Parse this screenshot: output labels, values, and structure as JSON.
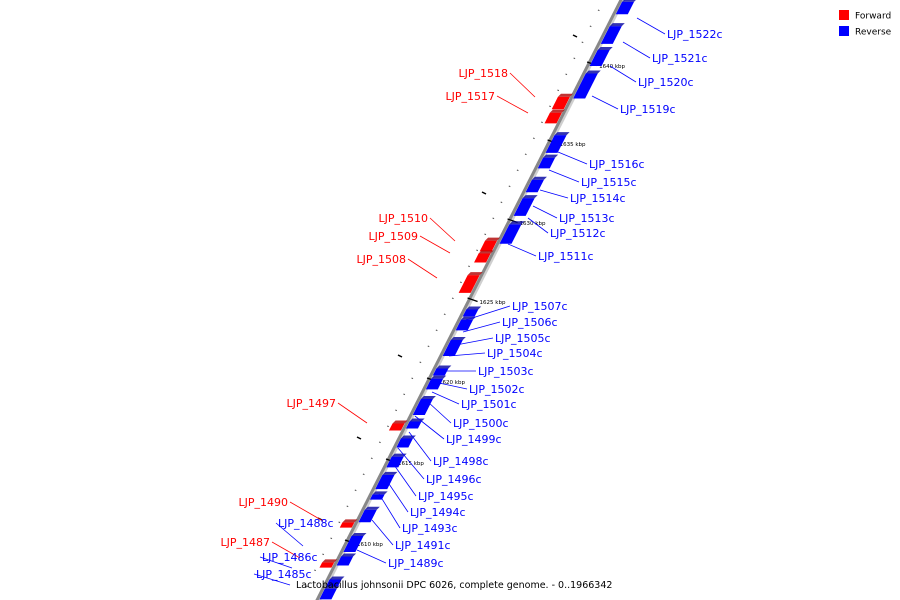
{
  "caption": "Lactobacillus johnsonii DPC 6026, complete genome. - 0..1966342",
  "legend": [
    {
      "label": "Forward",
      "color": "#ff0000"
    },
    {
      "label": "Reverse",
      "color": "#0000ff"
    }
  ],
  "colors": {
    "forward": "#ff0000",
    "reverse": "#0000ff",
    "axis": "#888888"
  },
  "ticks": [
    "1610 kbp",
    "1615 kbp",
    "1620 kbp",
    "1625 kbp",
    "1630 kbp",
    "1635 kbp",
    "1640 kbp"
  ],
  "genes": [
    {
      "name": "LJP_1522c",
      "strand": "reverse"
    },
    {
      "name": "LJP_1521c",
      "strand": "reverse"
    },
    {
      "name": "LJP_1520c",
      "strand": "reverse"
    },
    {
      "name": "LJP_1519c",
      "strand": "reverse"
    },
    {
      "name": "LJP_1518",
      "strand": "forward"
    },
    {
      "name": "LJP_1517",
      "strand": "forward"
    },
    {
      "name": "LJP_1516c",
      "strand": "reverse"
    },
    {
      "name": "LJP_1515c",
      "strand": "reverse"
    },
    {
      "name": "LJP_1514c",
      "strand": "reverse"
    },
    {
      "name": "LJP_1513c",
      "strand": "reverse"
    },
    {
      "name": "LJP_1512c",
      "strand": "reverse"
    },
    {
      "name": "LJP_1511c",
      "strand": "reverse"
    },
    {
      "name": "LJP_1510",
      "strand": "forward"
    },
    {
      "name": "LJP_1509",
      "strand": "forward"
    },
    {
      "name": "LJP_1508",
      "strand": "forward"
    },
    {
      "name": "LJP_1507c",
      "strand": "reverse"
    },
    {
      "name": "LJP_1506c",
      "strand": "reverse"
    },
    {
      "name": "LJP_1505c",
      "strand": "reverse"
    },
    {
      "name": "LJP_1504c",
      "strand": "reverse"
    },
    {
      "name": "LJP_1503c",
      "strand": "reverse"
    },
    {
      "name": "LJP_1502c",
      "strand": "reverse"
    },
    {
      "name": "LJP_1501c",
      "strand": "reverse"
    },
    {
      "name": "LJP_1500c",
      "strand": "reverse"
    },
    {
      "name": "LJP_1499c",
      "strand": "reverse"
    },
    {
      "name": "LJP_1498c",
      "strand": "reverse"
    },
    {
      "name": "LJP_1497",
      "strand": "forward"
    },
    {
      "name": "LJP_1496c",
      "strand": "reverse"
    },
    {
      "name": "LJP_1495c",
      "strand": "reverse"
    },
    {
      "name": "LJP_1494c",
      "strand": "reverse"
    },
    {
      "name": "LJP_1493c",
      "strand": "reverse"
    },
    {
      "name": "LJP_1491c",
      "strand": "reverse"
    },
    {
      "name": "LJP_1490",
      "strand": "forward"
    },
    {
      "name": "LJP_1489c",
      "strand": "reverse"
    },
    {
      "name": "LJP_1488c",
      "strand": "reverse"
    },
    {
      "name": "LJP_1487",
      "strand": "forward"
    },
    {
      "name": "LJP_1486c",
      "strand": "reverse"
    },
    {
      "name": "LJP_1485c",
      "strand": "reverse"
    }
  ]
}
